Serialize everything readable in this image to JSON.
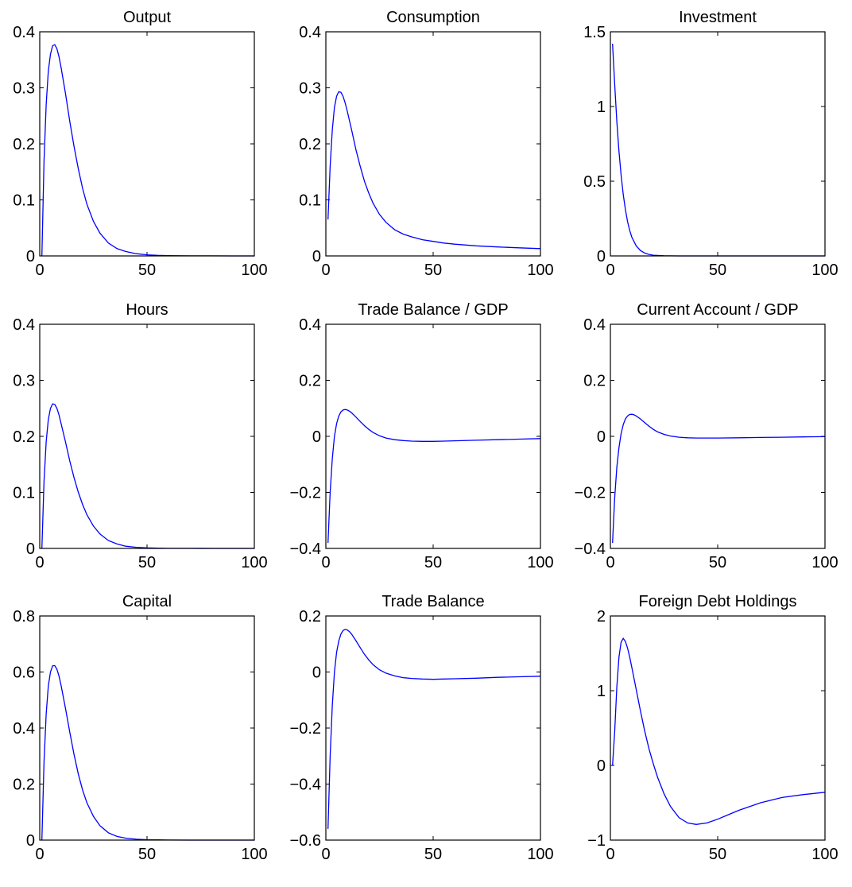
{
  "chart_data": [
    {
      "type": "line",
      "title": "Output",
      "xlim": [
        0,
        100
      ],
      "ylim": [
        0,
        0.4
      ],
      "xticks": [
        0,
        50,
        100
      ],
      "yticks": [
        0,
        0.1,
        0.2,
        0.3,
        0.4
      ],
      "xtick_labels": [
        "0",
        "50",
        "100"
      ],
      "ytick_labels": [
        "0",
        "0.1",
        "0.2",
        "0.3",
        "0.4"
      ],
      "series": [
        {
          "color": "#0000ff",
          "x": [
            1,
            2,
            3,
            4,
            5,
            6,
            7,
            8,
            9,
            10,
            12,
            14,
            16,
            18,
            20,
            22,
            25,
            28,
            32,
            36,
            40,
            45,
            50,
            55,
            60,
            70,
            80,
            90,
            100
          ],
          "y": [
            0.0,
            0.17,
            0.27,
            0.33,
            0.36,
            0.375,
            0.377,
            0.37,
            0.355,
            0.335,
            0.29,
            0.24,
            0.195,
            0.155,
            0.12,
            0.092,
            0.062,
            0.041,
            0.023,
            0.013,
            0.008,
            0.004,
            0.002,
            0.001,
            0.0005,
            0.0002,
            0.0001,
            0.0,
            0.0
          ]
        }
      ]
    },
    {
      "type": "line",
      "title": "Consumption",
      "xlim": [
        0,
        100
      ],
      "ylim": [
        0,
        0.4
      ],
      "xticks": [
        0,
        50,
        100
      ],
      "yticks": [
        0,
        0.1,
        0.2,
        0.3,
        0.4
      ],
      "xtick_labels": [
        "0",
        "50",
        "100"
      ],
      "ytick_labels": [
        "0",
        "0.1",
        "0.2",
        "0.3",
        "0.4"
      ],
      "series": [
        {
          "color": "#0000ff",
          "x": [
            1,
            2,
            3,
            4,
            5,
            6,
            7,
            8,
            9,
            10,
            12,
            14,
            16,
            18,
            20,
            22,
            25,
            28,
            32,
            36,
            40,
            45,
            50,
            55,
            60,
            70,
            80,
            90,
            100
          ],
          "y": [
            0.065,
            0.16,
            0.225,
            0.265,
            0.285,
            0.293,
            0.292,
            0.285,
            0.273,
            0.258,
            0.225,
            0.19,
            0.16,
            0.133,
            0.112,
            0.094,
            0.074,
            0.06,
            0.047,
            0.039,
            0.034,
            0.029,
            0.026,
            0.023,
            0.021,
            0.018,
            0.016,
            0.0145,
            0.013
          ]
        }
      ]
    },
    {
      "type": "line",
      "title": "Investment",
      "xlim": [
        0,
        100
      ],
      "ylim": [
        0,
        1.5
      ],
      "xticks": [
        0,
        50,
        100
      ],
      "yticks": [
        0,
        0.5,
        1,
        1.5
      ],
      "xtick_labels": [
        "0",
        "50",
        "100"
      ],
      "ytick_labels": [
        "0",
        "0.5",
        "1",
        "1.5"
      ],
      "series": [
        {
          "color": "#0000ff",
          "x": [
            1,
            2,
            3,
            4,
            5,
            6,
            7,
            8,
            9,
            10,
            12,
            14,
            16,
            18,
            20,
            22,
            25,
            28,
            32,
            36,
            40,
            50,
            60,
            70,
            80,
            90,
            100
          ],
          "y": [
            1.42,
            1.15,
            0.9,
            0.7,
            0.54,
            0.41,
            0.31,
            0.23,
            0.17,
            0.125,
            0.068,
            0.036,
            0.019,
            0.01,
            0.005,
            0.003,
            0.001,
            0.0005,
            0.0002,
            0.0001,
            0.0,
            0.0,
            0.0,
            0.0,
            0.0,
            0.0,
            0.0
          ]
        }
      ]
    },
    {
      "type": "line",
      "title": "Hours",
      "xlim": [
        0,
        100
      ],
      "ylim": [
        0,
        0.4
      ],
      "xticks": [
        0,
        50,
        100
      ],
      "yticks": [
        0,
        0.1,
        0.2,
        0.3,
        0.4
      ],
      "xtick_labels": [
        "0",
        "50",
        "100"
      ],
      "ytick_labels": [
        "0",
        "0.1",
        "0.2",
        "0.3",
        "0.4"
      ],
      "series": [
        {
          "color": "#0000ff",
          "x": [
            1,
            2,
            3,
            4,
            5,
            6,
            7,
            8,
            9,
            10,
            12,
            14,
            16,
            18,
            20,
            22,
            25,
            28,
            32,
            36,
            40,
            45,
            50,
            55,
            60,
            70,
            80,
            90,
            100
          ],
          "y": [
            0.0,
            0.12,
            0.19,
            0.23,
            0.25,
            0.258,
            0.257,
            0.25,
            0.238,
            0.222,
            0.19,
            0.156,
            0.126,
            0.1,
            0.078,
            0.06,
            0.04,
            0.026,
            0.014,
            0.008,
            0.004,
            0.002,
            0.001,
            0.0005,
            0.0002,
            0.0001,
            0.0,
            0.0,
            0.0
          ]
        }
      ]
    },
    {
      "type": "line",
      "title": "Trade Balance / GDP",
      "xlim": [
        0,
        100
      ],
      "ylim": [
        -0.4,
        0.4
      ],
      "xticks": [
        0,
        50,
        100
      ],
      "yticks": [
        -0.4,
        -0.2,
        0,
        0.2,
        0.4
      ],
      "xtick_labels": [
        "0",
        "50",
        "100"
      ],
      "ytick_labels": [
        "−0.4",
        "−0.2",
        "0",
        "0.2",
        "0.4"
      ],
      "series": [
        {
          "color": "#0000ff",
          "x": [
            1,
            2,
            3,
            4,
            5,
            6,
            7,
            8,
            9,
            10,
            11,
            12,
            14,
            16,
            18,
            20,
            22,
            25,
            28,
            32,
            36,
            40,
            45,
            50,
            55,
            60,
            70,
            80,
            90,
            100
          ],
          "y": [
            -0.38,
            -0.2,
            -0.08,
            0.0,
            0.045,
            0.072,
            0.087,
            0.094,
            0.096,
            0.094,
            0.09,
            0.084,
            0.069,
            0.053,
            0.038,
            0.025,
            0.014,
            0.002,
            -0.006,
            -0.012,
            -0.015,
            -0.017,
            -0.018,
            -0.018,
            -0.017,
            -0.016,
            -0.014,
            -0.012,
            -0.01,
            -0.008
          ]
        }
      ]
    },
    {
      "type": "line",
      "title": "Current Account / GDP",
      "xlim": [
        0,
        100
      ],
      "ylim": [
        -0.4,
        0.4
      ],
      "xticks": [
        0,
        50,
        100
      ],
      "yticks": [
        -0.4,
        -0.2,
        0,
        0.2,
        0.4
      ],
      "xtick_labels": [
        "0",
        "50",
        "100"
      ],
      "ytick_labels": [
        "−0.4",
        "−0.2",
        "0",
        "0.2",
        "0.4"
      ],
      "series": [
        {
          "color": "#0000ff",
          "x": [
            1,
            2,
            3,
            4,
            5,
            6,
            7,
            8,
            9,
            10,
            11,
            12,
            14,
            16,
            18,
            20,
            22,
            25,
            28,
            32,
            36,
            40,
            45,
            50,
            60,
            70,
            80,
            90,
            100
          ],
          "y": [
            -0.38,
            -0.22,
            -0.11,
            -0.04,
            0.01,
            0.042,
            0.062,
            0.073,
            0.078,
            0.079,
            0.077,
            0.073,
            0.062,
            0.049,
            0.036,
            0.025,
            0.016,
            0.007,
            0.001,
            -0.003,
            -0.005,
            -0.006,
            -0.006,
            -0.006,
            -0.005,
            -0.004,
            -0.003,
            -0.002,
            -0.001
          ]
        }
      ]
    },
    {
      "type": "line",
      "title": "Capital",
      "xlim": [
        0,
        100
      ],
      "ylim": [
        0,
        0.8
      ],
      "xticks": [
        0,
        50,
        100
      ],
      "yticks": [
        0,
        0.2,
        0.4,
        0.6,
        0.8
      ],
      "xtick_labels": [
        "0",
        "50",
        "100"
      ],
      "ytick_labels": [
        "0",
        "0.2",
        "0.4",
        "0.6",
        "0.8"
      ],
      "series": [
        {
          "color": "#0000ff",
          "x": [
            1,
            2,
            3,
            4,
            5,
            6,
            7,
            8,
            9,
            10,
            12,
            14,
            16,
            18,
            20,
            22,
            25,
            28,
            32,
            36,
            40,
            45,
            50,
            55,
            60,
            70,
            80,
            90,
            100
          ],
          "y": [
            0.0,
            0.28,
            0.45,
            0.55,
            0.6,
            0.622,
            0.623,
            0.61,
            0.585,
            0.55,
            0.47,
            0.385,
            0.305,
            0.235,
            0.178,
            0.133,
            0.085,
            0.052,
            0.026,
            0.013,
            0.007,
            0.003,
            0.0015,
            0.0008,
            0.0004,
            0.0001,
            0.0,
            0.0,
            0.0
          ]
        }
      ]
    },
    {
      "type": "line",
      "title": "Trade Balance",
      "xlim": [
        0,
        100
      ],
      "ylim": [
        -0.6,
        0.2
      ],
      "xticks": [
        0,
        50,
        100
      ],
      "yticks": [
        -0.6,
        -0.4,
        -0.2,
        0,
        0.2
      ],
      "xtick_labels": [
        "0",
        "50",
        "100"
      ],
      "ytick_labels": [
        "−0.6",
        "−0.4",
        "−0.2",
        "0",
        "0.2"
      ],
      "series": [
        {
          "color": "#0000ff",
          "x": [
            1,
            2,
            3,
            4,
            5,
            6,
            7,
            8,
            9,
            10,
            11,
            12,
            14,
            16,
            18,
            20,
            22,
            25,
            28,
            32,
            36,
            40,
            45,
            50,
            55,
            60,
            70,
            80,
            90,
            100
          ],
          "y": [
            -0.56,
            -0.3,
            -0.12,
            0.0,
            0.07,
            0.11,
            0.135,
            0.148,
            0.152,
            0.15,
            0.144,
            0.135,
            0.112,
            0.087,
            0.063,
            0.043,
            0.026,
            0.008,
            -0.004,
            -0.014,
            -0.02,
            -0.023,
            -0.025,
            -0.026,
            -0.025,
            -0.024,
            -0.022,
            -0.019,
            -0.017,
            -0.015
          ]
        }
      ]
    },
    {
      "type": "line",
      "title": "Foreign Debt Holdings",
      "xlim": [
        0,
        100
      ],
      "ylim": [
        -1,
        2
      ],
      "xticks": [
        0,
        50,
        100
      ],
      "yticks": [
        -1,
        0,
        1,
        2
      ],
      "xtick_labels": [
        "0",
        "50",
        "100"
      ],
      "ytick_labels": [
        "−1",
        "0",
        "1",
        "2"
      ],
      "series": [
        {
          "color": "#0000ff",
          "x": [
            1,
            2,
            3,
            4,
            5,
            6,
            7,
            8,
            9,
            10,
            12,
            14,
            16,
            18,
            20,
            22,
            25,
            28,
            32,
            36,
            40,
            45,
            50,
            55,
            60,
            70,
            80,
            90,
            100
          ],
          "y": [
            0.0,
            0.45,
            1.05,
            1.45,
            1.65,
            1.7,
            1.66,
            1.57,
            1.45,
            1.31,
            1.02,
            0.73,
            0.46,
            0.22,
            0.02,
            -0.16,
            -0.38,
            -0.55,
            -0.7,
            -0.77,
            -0.79,
            -0.77,
            -0.72,
            -0.66,
            -0.6,
            -0.5,
            -0.43,
            -0.39,
            -0.36
          ]
        }
      ]
    }
  ]
}
